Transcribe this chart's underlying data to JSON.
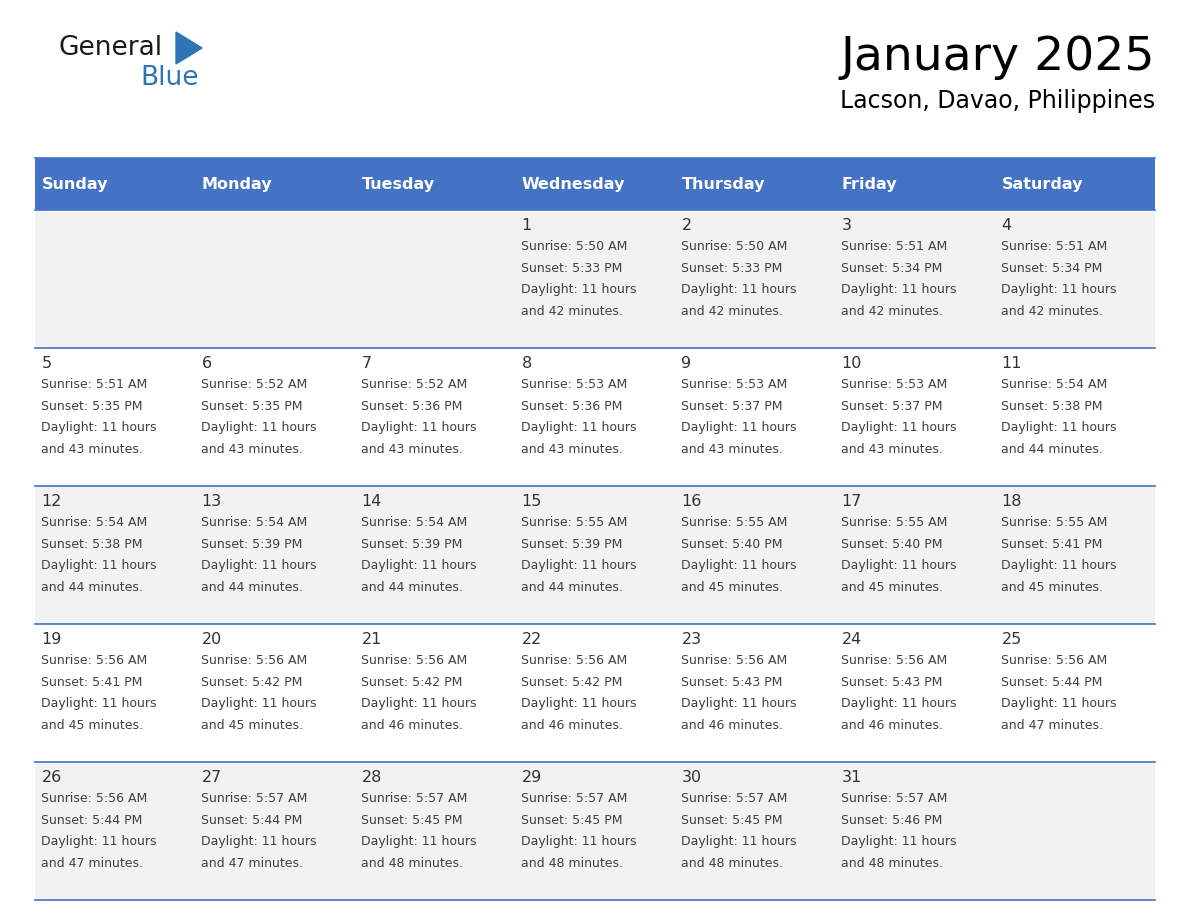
{
  "title": "January 2025",
  "subtitle": "Lacson, Davao, Philippines",
  "header_bg": "#4472C4",
  "header_text_color": "#FFFFFF",
  "cell_bg_odd": "#F2F2F2",
  "cell_bg_even": "#FFFFFF",
  "border_color": "#4472C4",
  "row_line_color": "#4472C4",
  "text_color": "#404040",
  "day_num_color": "#333333",
  "days_of_week": [
    "Sunday",
    "Monday",
    "Tuesday",
    "Wednesday",
    "Thursday",
    "Friday",
    "Saturday"
  ],
  "calendar_data": [
    [
      {
        "day": "",
        "sunrise": "",
        "sunset": "",
        "daylight": ""
      },
      {
        "day": "",
        "sunrise": "",
        "sunset": "",
        "daylight": ""
      },
      {
        "day": "",
        "sunrise": "",
        "sunset": "",
        "daylight": ""
      },
      {
        "day": "1",
        "sunrise": "5:50 AM",
        "sunset": "5:33 PM",
        "daylight": "11 hours and 42 minutes."
      },
      {
        "day": "2",
        "sunrise": "5:50 AM",
        "sunset": "5:33 PM",
        "daylight": "11 hours and 42 minutes."
      },
      {
        "day": "3",
        "sunrise": "5:51 AM",
        "sunset": "5:34 PM",
        "daylight": "11 hours and 42 minutes."
      },
      {
        "day": "4",
        "sunrise": "5:51 AM",
        "sunset": "5:34 PM",
        "daylight": "11 hours and 42 minutes."
      }
    ],
    [
      {
        "day": "5",
        "sunrise": "5:51 AM",
        "sunset": "5:35 PM",
        "daylight": "11 hours and 43 minutes."
      },
      {
        "day": "6",
        "sunrise": "5:52 AM",
        "sunset": "5:35 PM",
        "daylight": "11 hours and 43 minutes."
      },
      {
        "day": "7",
        "sunrise": "5:52 AM",
        "sunset": "5:36 PM",
        "daylight": "11 hours and 43 minutes."
      },
      {
        "day": "8",
        "sunrise": "5:53 AM",
        "sunset": "5:36 PM",
        "daylight": "11 hours and 43 minutes."
      },
      {
        "day": "9",
        "sunrise": "5:53 AM",
        "sunset": "5:37 PM",
        "daylight": "11 hours and 43 minutes."
      },
      {
        "day": "10",
        "sunrise": "5:53 AM",
        "sunset": "5:37 PM",
        "daylight": "11 hours and 43 minutes."
      },
      {
        "day": "11",
        "sunrise": "5:54 AM",
        "sunset": "5:38 PM",
        "daylight": "11 hours and 44 minutes."
      }
    ],
    [
      {
        "day": "12",
        "sunrise": "5:54 AM",
        "sunset": "5:38 PM",
        "daylight": "11 hours and 44 minutes."
      },
      {
        "day": "13",
        "sunrise": "5:54 AM",
        "sunset": "5:39 PM",
        "daylight": "11 hours and 44 minutes."
      },
      {
        "day": "14",
        "sunrise": "5:54 AM",
        "sunset": "5:39 PM",
        "daylight": "11 hours and 44 minutes."
      },
      {
        "day": "15",
        "sunrise": "5:55 AM",
        "sunset": "5:39 PM",
        "daylight": "11 hours and 44 minutes."
      },
      {
        "day": "16",
        "sunrise": "5:55 AM",
        "sunset": "5:40 PM",
        "daylight": "11 hours and 45 minutes."
      },
      {
        "day": "17",
        "sunrise": "5:55 AM",
        "sunset": "5:40 PM",
        "daylight": "11 hours and 45 minutes."
      },
      {
        "day": "18",
        "sunrise": "5:55 AM",
        "sunset": "5:41 PM",
        "daylight": "11 hours and 45 minutes."
      }
    ],
    [
      {
        "day": "19",
        "sunrise": "5:56 AM",
        "sunset": "5:41 PM",
        "daylight": "11 hours and 45 minutes."
      },
      {
        "day": "20",
        "sunrise": "5:56 AM",
        "sunset": "5:42 PM",
        "daylight": "11 hours and 45 minutes."
      },
      {
        "day": "21",
        "sunrise": "5:56 AM",
        "sunset": "5:42 PM",
        "daylight": "11 hours and 46 minutes."
      },
      {
        "day": "22",
        "sunrise": "5:56 AM",
        "sunset": "5:42 PM",
        "daylight": "11 hours and 46 minutes."
      },
      {
        "day": "23",
        "sunrise": "5:56 AM",
        "sunset": "5:43 PM",
        "daylight": "11 hours and 46 minutes."
      },
      {
        "day": "24",
        "sunrise": "5:56 AM",
        "sunset": "5:43 PM",
        "daylight": "11 hours and 46 minutes."
      },
      {
        "day": "25",
        "sunrise": "5:56 AM",
        "sunset": "5:44 PM",
        "daylight": "11 hours and 47 minutes."
      }
    ],
    [
      {
        "day": "26",
        "sunrise": "5:56 AM",
        "sunset": "5:44 PM",
        "daylight": "11 hours and 47 minutes."
      },
      {
        "day": "27",
        "sunrise": "5:57 AM",
        "sunset": "5:44 PM",
        "daylight": "11 hours and 47 minutes."
      },
      {
        "day": "28",
        "sunrise": "5:57 AM",
        "sunset": "5:45 PM",
        "daylight": "11 hours and 48 minutes."
      },
      {
        "day": "29",
        "sunrise": "5:57 AM",
        "sunset": "5:45 PM",
        "daylight": "11 hours and 48 minutes."
      },
      {
        "day": "30",
        "sunrise": "5:57 AM",
        "sunset": "5:45 PM",
        "daylight": "11 hours and 48 minutes."
      },
      {
        "day": "31",
        "sunrise": "5:57 AM",
        "sunset": "5:46 PM",
        "daylight": "11 hours and 48 minutes."
      },
      {
        "day": "",
        "sunrise": "",
        "sunset": "",
        "daylight": ""
      }
    ]
  ],
  "logo_general_color": "#1a1a1a",
  "logo_blue_color": "#2E75B6",
  "logo_triangle_color": "#2E75B6"
}
